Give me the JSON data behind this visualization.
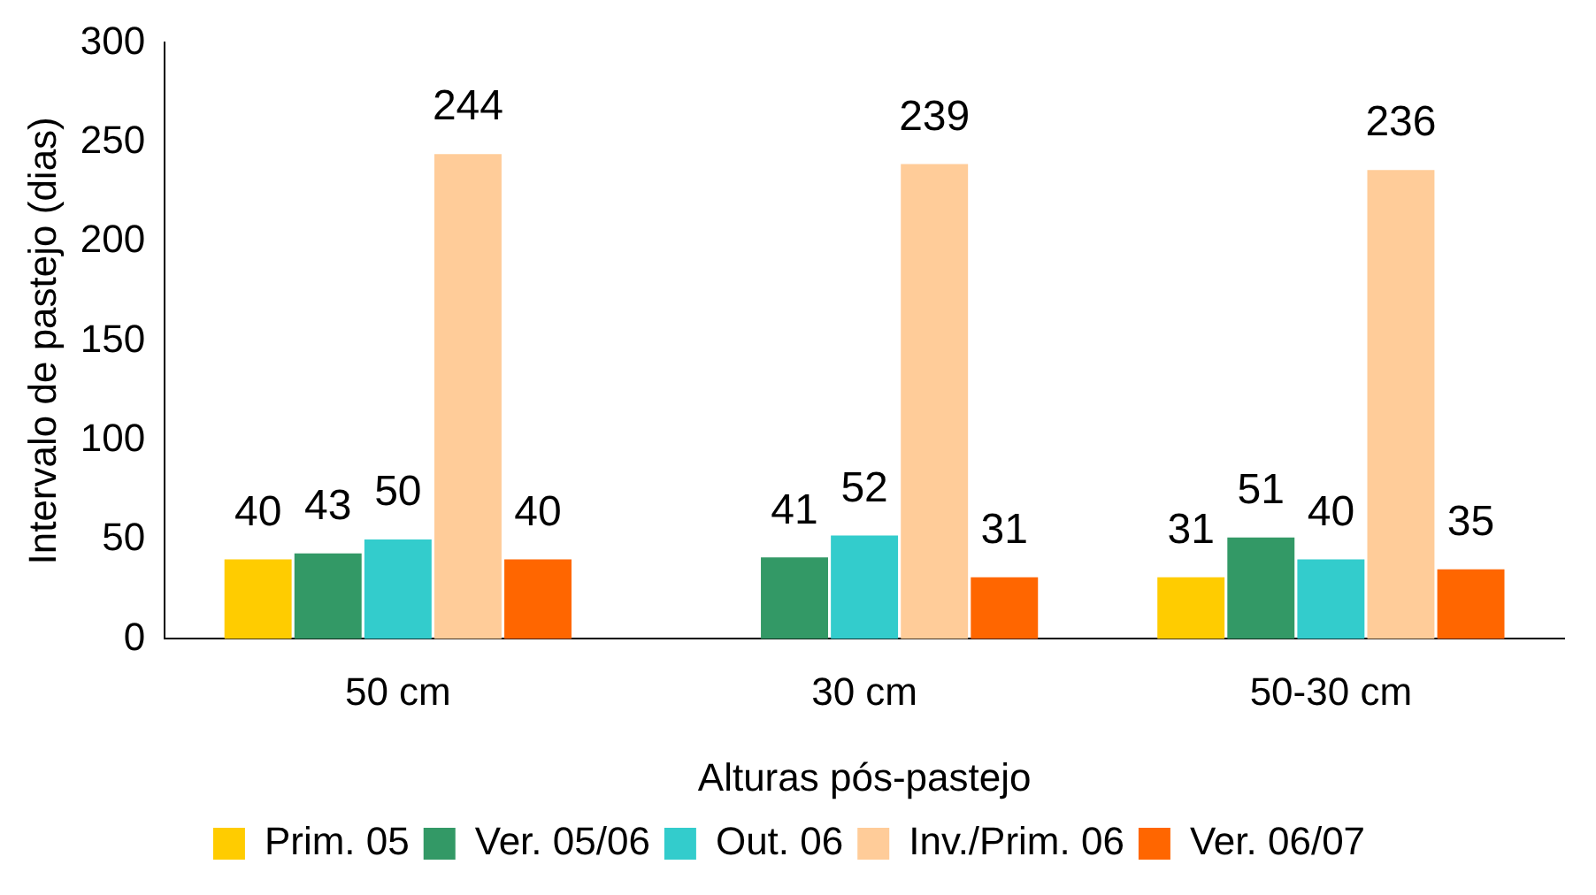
{
  "chart_data": {
    "type": "bar",
    "xlabel": "Alturas pós-pastejo",
    "ylabel": "Intervalo de pastejo (dias)",
    "categories": [
      "50 cm",
      "30 cm",
      "50-30 cm"
    ],
    "series": [
      {
        "name": "Prim. 05",
        "color": "#ffcc00",
        "values": [
          40,
          null,
          31
        ]
      },
      {
        "name": "Ver. 05/06",
        "color": "#339966",
        "values": [
          43,
          41,
          51
        ]
      },
      {
        "name": "Out. 06",
        "color": "#33cccc",
        "values": [
          50,
          52,
          40
        ]
      },
      {
        "name": "Inv./Prim. 06",
        "color": "#ffcc99",
        "values": [
          244,
          239,
          236
        ]
      },
      {
        "name": "Ver. 06/07",
        "color": "#ff6600",
        "values": [
          40,
          31,
          35
        ]
      }
    ],
    "ylim": [
      0,
      300
    ],
    "yticks": [
      0,
      50,
      100,
      150,
      200,
      250,
      300
    ],
    "grid": false,
    "legend": "bottom",
    "data_labels": true
  }
}
